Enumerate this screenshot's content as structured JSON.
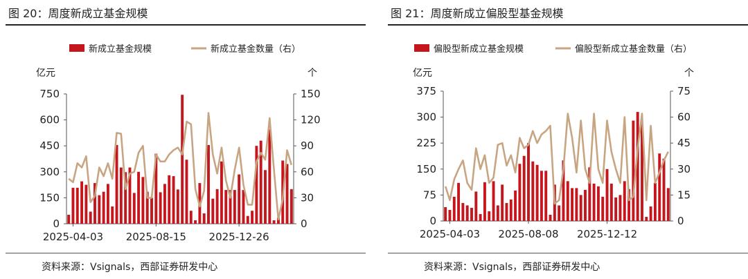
{
  "colors": {
    "bar": "#c4161c",
    "line": "#c8a582",
    "axis": "#555555"
  },
  "figures": [
    {
      "title": "图 20：周度新成立基金规模",
      "source": "资料来源：Vsignals，西部证券研发中心",
      "chart_data": {
        "type": "bar+line",
        "legend": {
          "bar": "新成立基金规模",
          "line": "新成立基金数量（右）"
        },
        "left_unit": "亿元",
        "right_unit": "个",
        "left_ticks": [
          "750",
          "600",
          "450",
          "300",
          "150",
          "0"
        ],
        "right_ticks": [
          "150",
          "120",
          "90",
          "60",
          "30",
          "0"
        ],
        "ylim_left": [
          0,
          750
        ],
        "ylim_right": [
          0,
          150
        ],
        "x_ticks": [
          {
            "label": "2025-04-03",
            "index": 1
          },
          {
            "label": "2025-08-15",
            "index": 20
          },
          {
            "label": "2025-12-26",
            "index": 39
          }
        ],
        "bars": [
          52,
          208,
          208,
          245,
          225,
          70,
          235,
          165,
          185,
          230,
          100,
          455,
          325,
          298,
          325,
          178,
          300,
          270,
          185,
          150,
          405,
          182,
          230,
          280,
          275,
          198,
          745,
          370,
          75,
          20,
          235,
          60,
          455,
          145,
          200,
          360,
          195,
          195,
          195,
          285,
          195,
          45,
          75,
          450,
          480,
          310,
          545,
          20,
          35,
          365,
          345,
          200
        ],
        "line": [
          52,
          48,
          70,
          65,
          78,
          25,
          32,
          65,
          55,
          70,
          52,
          105,
          104,
          40,
          58,
          60,
          82,
          90,
          30,
          30,
          80,
          72,
          72,
          80,
          85,
          88,
          80,
          118,
          115,
          40,
          20,
          38,
          128,
          80,
          58,
          88,
          50,
          30,
          62,
          88,
          45,
          22,
          22,
          72,
          82,
          74,
          122,
          62,
          5,
          28,
          85,
          68
        ]
      }
    },
    {
      "title": "图 21：周度新成立偏股型基金规模",
      "source": "资料来源：Vsignals，西部证券研发中心",
      "chart_data": {
        "type": "bar+line",
        "legend": {
          "bar": "偏股型新成立基金规模",
          "line": "偏股型新成立基金数量（右）"
        },
        "left_unit": "亿元",
        "right_unit": "个",
        "left_ticks": [
          "375",
          "300",
          "225",
          "150",
          "75",
          "0"
        ],
        "right_ticks": [
          "75",
          "60",
          "45",
          "30",
          "15",
          "0"
        ],
        "ylim_left": [
          0,
          375
        ],
        "ylim_right": [
          0,
          75
        ],
        "x_ticks": [
          {
            "label": "2025-04-03",
            "index": 1
          },
          {
            "label": "2025-08-08",
            "index": 19
          },
          {
            "label": "2025-12-12",
            "index": 37
          }
        ],
        "bars": [
          40,
          32,
          70,
          110,
          52,
          45,
          38,
          85,
          20,
          112,
          28,
          115,
          45,
          105,
          52,
          62,
          88,
          165,
          188,
          225,
          172,
          162,
          145,
          145,
          18,
          105,
          45,
          175,
          115,
          95,
          95,
          75,
          90,
          155,
          108,
          100,
          70,
          150,
          108,
          68,
          75,
          115,
          92,
          290,
          315,
          280,
          12,
          42,
          110,
          195,
          180,
          95
        ],
        "line": [
          20,
          12,
          24,
          30,
          35,
          22,
          18,
          42,
          30,
          38,
          22,
          25,
          44,
          45,
          32,
          38,
          28,
          48,
          42,
          44,
          52,
          45,
          50,
          52,
          55,
          10,
          12,
          30,
          62,
          48,
          28,
          58,
          30,
          22,
          62,
          30,
          22,
          58,
          40,
          30,
          22,
          60,
          12,
          14,
          42,
          62,
          12,
          55,
          22,
          28,
          35,
          40
        ]
      }
    }
  ]
}
